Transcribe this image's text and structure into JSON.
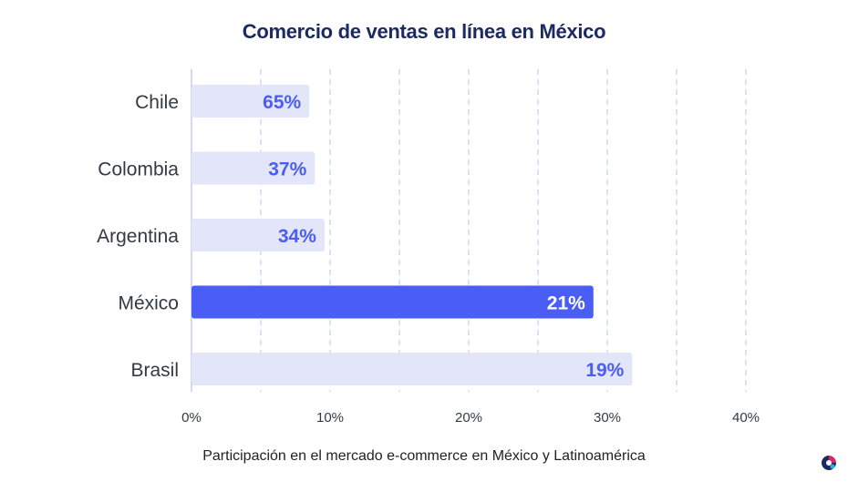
{
  "title": "Comercio de ventas en línea en México",
  "subtitle": "Participación en el mercado e-commerce en México y Latinoamérica",
  "colors": {
    "highlight": "#4a5ef5",
    "muted_bar": "#e3e5f8",
    "muted_text": "#4a5ef5",
    "highlight_text": "#ffffff",
    "grid": "#b9bff0",
    "title": "#1b2a63"
  },
  "chart_data": {
    "type": "bar",
    "orientation": "horizontal",
    "title": "Comercio de ventas en línea en México",
    "xlabel": "Participación en el mercado e-commerce en México y Latinoamérica",
    "ylabel": "",
    "categories": [
      "Chile",
      "Colombia",
      "Argentina",
      "México",
      "Brasil"
    ],
    "bar_lengths": [
      8.5,
      8.9,
      9.6,
      29.0,
      31.8
    ],
    "labels": [
      "65%",
      "37%",
      "34%",
      "21%",
      "19%"
    ],
    "highlight": "México",
    "xlim": [
      0,
      40
    ],
    "xticks": [
      "0%",
      "10%",
      "20%",
      "30%",
      "40%"
    ],
    "xtick_values": [
      0,
      10,
      20,
      30,
      40
    ],
    "grid": "vertical dashed every 5%"
  }
}
